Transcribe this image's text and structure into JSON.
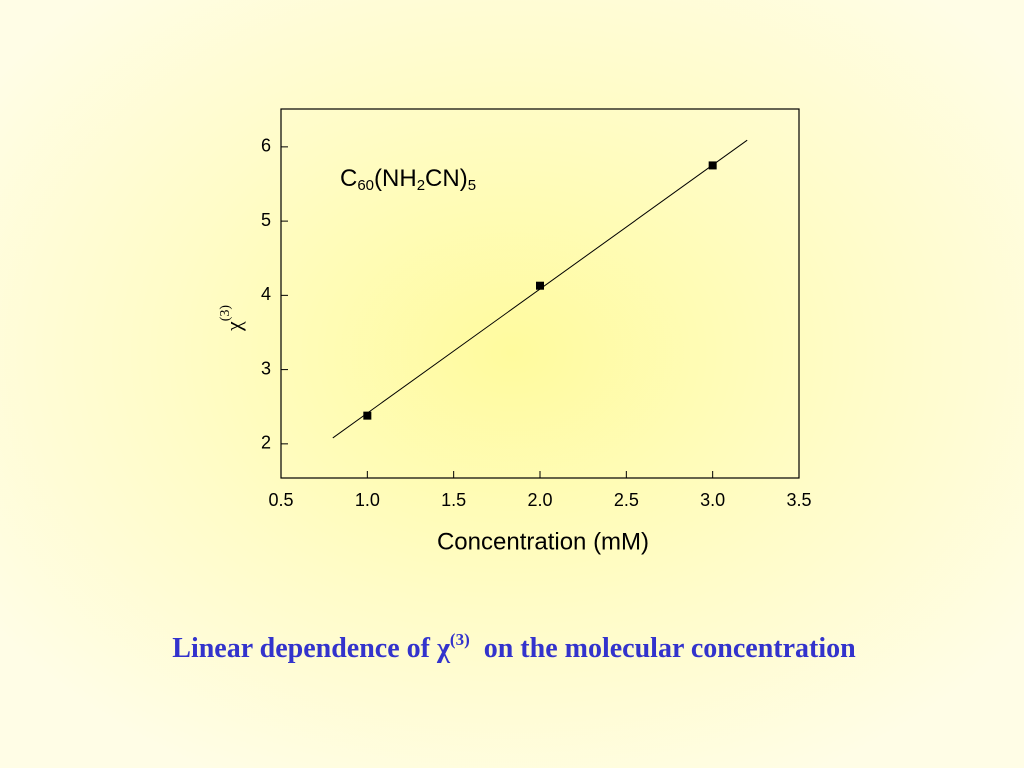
{
  "chart_data": {
    "type": "scatter",
    "annotation": [
      "C",
      "60",
      "(NH",
      "2",
      "CN)",
      "5"
    ],
    "x_label": "Concentration (mM)",
    "y_label": [
      "χ",
      "(3)"
    ],
    "caption": [
      "Linear dependence of χ",
      "(3)",
      "on the molecular concentration"
    ],
    "x": [
      1.0,
      2.0,
      3.0
    ],
    "values": [
      2.38,
      4.13,
      5.75
    ],
    "color": "#000000",
    "fit": {
      "x": [
        0.8,
        3.2
      ],
      "values": [
        2.08,
        6.09
      ]
    },
    "xlim": [
      0.5,
      3.5
    ],
    "xticks": [
      0.5,
      {
        "value": 1.0,
        "label": "1.0"
      },
      1.5,
      {
        "value": 2.0,
        "label": "2.0"
      },
      2.5,
      {
        "value": 3.0,
        "label": "3.0"
      },
      3.5
    ],
    "ylim": [
      1.54,
      6.51
    ],
    "yticks": [
      2,
      3,
      4,
      5,
      6
    ],
    "grid": false
  }
}
